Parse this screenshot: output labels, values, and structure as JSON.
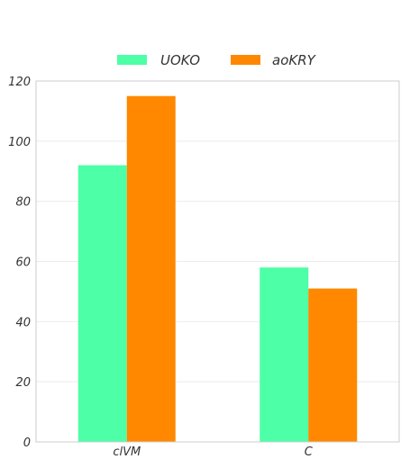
{
  "chart_data": {
    "type": "bar",
    "title": "",
    "xlabel": "",
    "ylabel": "",
    "categories": [
      "clVM",
      "C"
    ],
    "series": [
      {
        "name": "UOKO",
        "values": [
          92,
          58
        ],
        "color": "#4dffa6"
      },
      {
        "name": "aoKRY",
        "values": [
          115,
          51
        ],
        "color": "#ff8800"
      }
    ],
    "ylim": [
      0,
      120
    ],
    "yticks": [
      0,
      20,
      40,
      60,
      80,
      100,
      120
    ],
    "grid": true,
    "legend_position": "top-center"
  }
}
